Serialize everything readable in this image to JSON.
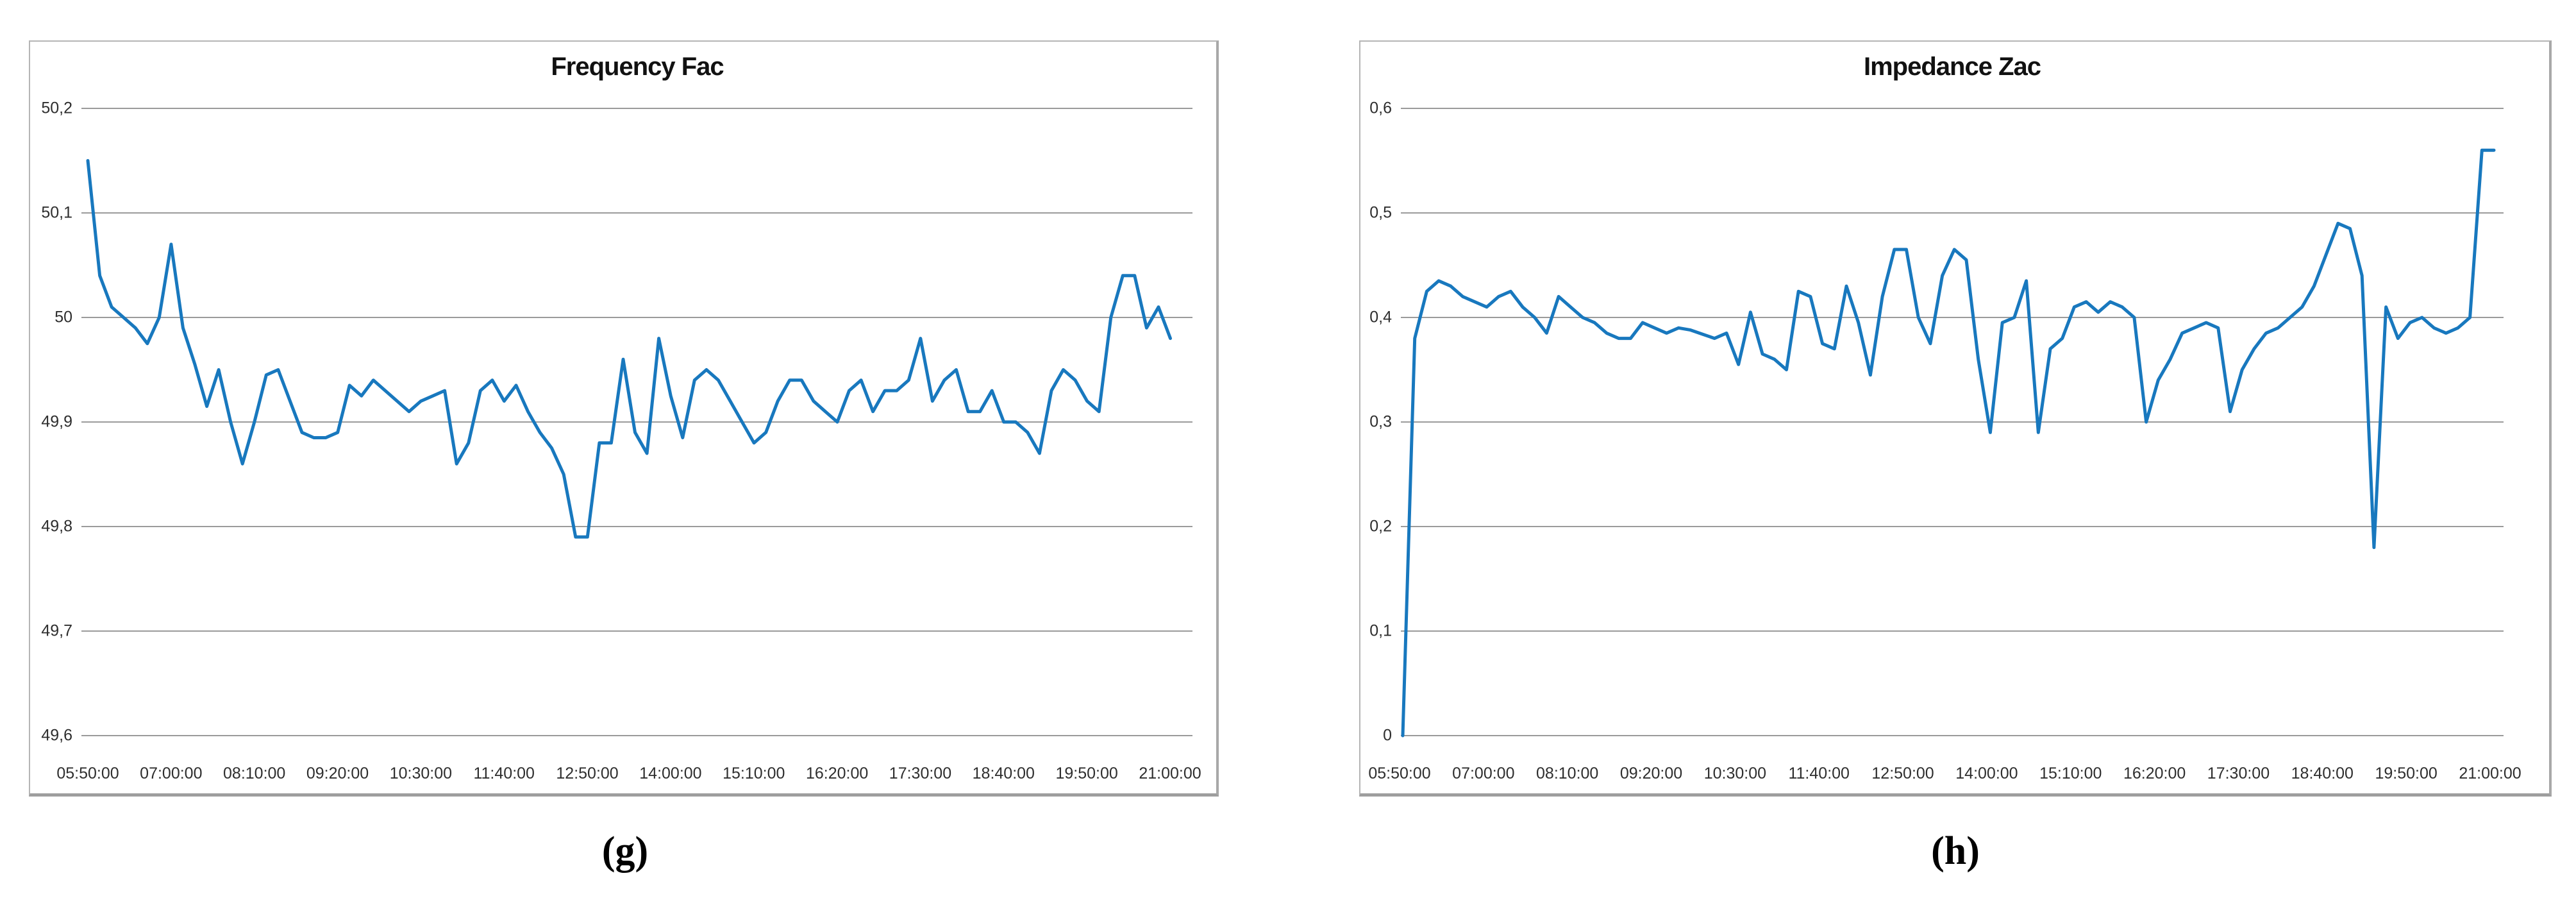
{
  "panels": [
    {
      "label": "(g)"
    },
    {
      "label": "(h)"
    }
  ],
  "chart_data": [
    {
      "type": "line",
      "title": "Frequency Fac",
      "x_start_time": "05:50:00",
      "x_interval_minutes": 10,
      "x_tick_labels": [
        "05:50:00",
        "07:00:00",
        "08:10:00",
        "09:20:00",
        "10:30:00",
        "11:40:00",
        "12:50:00",
        "14:00:00",
        "15:10:00",
        "16:20:00",
        "17:30:00",
        "18:40:00",
        "19:50:00",
        "21:00:00"
      ],
      "y_tick_labels": [
        "50,2",
        "50,1",
        "50",
        "49,9",
        "49,8",
        "49,7",
        "49,6"
      ],
      "ylim": [
        49.6,
        50.2
      ],
      "grid": true,
      "legend": "none",
      "line_color": "#1878BE",
      "grid_color": "#9b9b9b",
      "values": [
        50.15,
        50.04,
        50.01,
        50.0,
        49.99,
        49.975,
        50.0,
        50.07,
        49.99,
        49.955,
        49.915,
        49.95,
        49.9,
        49.86,
        49.9,
        49.945,
        49.95,
        49.92,
        49.89,
        49.885,
        49.885,
        49.89,
        49.935,
        49.925,
        49.94,
        49.93,
        49.92,
        49.91,
        49.92,
        49.925,
        49.93,
        49.86,
        49.88,
        49.93,
        49.94,
        49.92,
        49.935,
        49.91,
        49.89,
        49.875,
        49.85,
        49.79,
        49.79,
        49.88,
        49.88,
        49.96,
        49.89,
        49.87,
        49.98,
        49.925,
        49.885,
        49.94,
        49.95,
        49.94,
        49.92,
        49.9,
        49.88,
        49.89,
        49.92,
        49.94,
        49.94,
        49.92,
        49.91,
        49.9,
        49.93,
        49.94,
        49.91,
        49.93,
        49.93,
        49.94,
        49.98,
        49.92,
        49.94,
        49.95,
        49.91,
        49.91,
        49.93,
        49.9,
        49.9,
        49.89,
        49.87,
        49.93,
        49.95,
        49.94,
        49.92,
        49.91,
        50.0,
        50.04,
        50.04,
        49.99,
        50.01,
        49.98
      ]
    },
    {
      "type": "line",
      "title": "Impedance Zac",
      "x_start_time": "05:50:00",
      "x_interval_minutes": 10,
      "x_tick_labels": [
        "05:50:00",
        "07:00:00",
        "08:10:00",
        "09:20:00",
        "10:30:00",
        "11:40:00",
        "12:50:00",
        "14:00:00",
        "15:10:00",
        "16:20:00",
        "17:30:00",
        "18:40:00",
        "19:50:00",
        "21:00:00"
      ],
      "y_tick_labels": [
        "0,6",
        "0,5",
        "0,4",
        "0,3",
        "0,2",
        "0,1",
        "0"
      ],
      "ylim": [
        0,
        0.6
      ],
      "grid": true,
      "legend": "none",
      "line_color": "#1878BE",
      "grid_color": "#9b9b9b",
      "values": [
        0.0,
        0.38,
        0.425,
        0.435,
        0.43,
        0.42,
        0.415,
        0.41,
        0.42,
        0.425,
        0.41,
        0.4,
        0.385,
        0.42,
        0.41,
        0.4,
        0.395,
        0.385,
        0.38,
        0.38,
        0.395,
        0.39,
        0.385,
        0.39,
        0.388,
        0.384,
        0.38,
        0.385,
        0.355,
        0.405,
        0.365,
        0.36,
        0.35,
        0.425,
        0.42,
        0.375,
        0.37,
        0.43,
        0.395,
        0.345,
        0.42,
        0.465,
        0.465,
        0.4,
        0.375,
        0.44,
        0.465,
        0.455,
        0.36,
        0.29,
        0.395,
        0.4,
        0.435,
        0.29,
        0.37,
        0.38,
        0.41,
        0.415,
        0.405,
        0.415,
        0.41,
        0.4,
        0.3,
        0.34,
        0.36,
        0.385,
        0.39,
        0.395,
        0.39,
        0.31,
        0.35,
        0.37,
        0.385,
        0.39,
        0.4,
        0.41,
        0.43,
        0.46,
        0.49,
        0.485,
        0.44,
        0.18,
        0.41,
        0.38,
        0.395,
        0.4,
        0.39,
        0.385,
        0.39,
        0.4,
        0.56,
        0.56
      ]
    }
  ]
}
